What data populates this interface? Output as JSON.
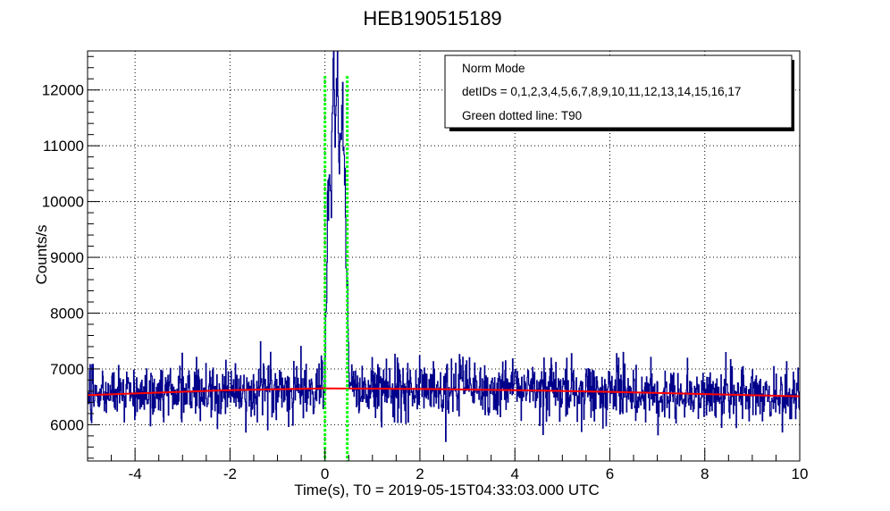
{
  "chart_data": {
    "type": "line",
    "title": "HEB190515189",
    "xlabel": "Time(s), T0 = 2019-05-15T04:33:03.000 UTC",
    "ylabel": "Counts/s",
    "xlim": [
      -5,
      10
    ],
    "ylim": [
      5350,
      12700
    ],
    "x_ticks": [
      -4,
      -2,
      0,
      2,
      4,
      6,
      8,
      10
    ],
    "y_ticks": [
      6000,
      7000,
      8000,
      9000,
      10000,
      11000,
      12000
    ],
    "grid": true,
    "legend": {
      "placement": "top-right",
      "entries": [
        "Norm Mode",
        "detIDs = 0,1,2,3,4,5,6,7,8,9,10,11,12,13,14,15,16,17",
        "Green dotted line: T90"
      ]
    },
    "colors": {
      "lightcurve": "#00008b",
      "background_fit": "#ff0000",
      "t90": "#00ff00"
    },
    "background_fit": {
      "x": [
        -5,
        -2,
        0,
        2,
        4,
        6,
        8,
        10
      ],
      "y": [
        6530,
        6620,
        6650,
        6640,
        6620,
        6590,
        6550,
        6510
      ]
    },
    "t90_lines": [
      0.0,
      0.47
    ],
    "burst_profile": {
      "x": [
        0.0,
        0.02,
        0.05,
        0.08,
        0.1,
        0.13,
        0.16,
        0.19,
        0.22,
        0.25,
        0.28,
        0.31,
        0.34,
        0.37,
        0.4,
        0.43,
        0.46,
        0.48,
        0.5
      ],
      "y": [
        8000,
        8100,
        9200,
        10400,
        10800,
        10300,
        11500,
        12700,
        11400,
        12100,
        11600,
        10900,
        11300,
        11800,
        10600,
        10100,
        8400,
        7800,
        6900
      ]
    },
    "noise_model": {
      "bin_width": 0.01,
      "sigma": 260,
      "seed": 190515
    }
  }
}
